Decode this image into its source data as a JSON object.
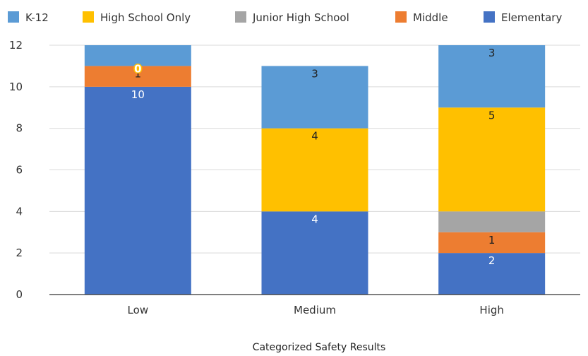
{
  "chart_data": {
    "type": "bar",
    "stacked": true,
    "categories": [
      "Low",
      "Medium",
      "High"
    ],
    "series": [
      {
        "name": "Elementary",
        "color": "#4472C4",
        "label_color": "#ffffff",
        "values": [
          10,
          4,
          2
        ],
        "labels": [
          "10",
          "4",
          "2"
        ]
      },
      {
        "name": "Middle",
        "color": "#ED7D31",
        "label_color": "#222222",
        "values": [
          1,
          0,
          1
        ],
        "labels": [
          "1",
          "",
          "1"
        ]
      },
      {
        "name": "Junior High School",
        "color": "#A5A5A5",
        "label_color": "#222222",
        "values": [
          0,
          0,
          1
        ],
        "labels": [
          "",
          "",
          ""
        ]
      },
      {
        "name": "High School Only",
        "color": "#FFC000",
        "label_color": "#222222",
        "values": [
          0,
          4,
          5
        ],
        "labels": [
          "0",
          "4",
          "5"
        ]
      },
      {
        "name": "K-12",
        "color": "#5B9BD5",
        "label_color": "#222222",
        "values": [
          1,
          3,
          3
        ],
        "labels": [
          "",
          "3",
          "3"
        ]
      }
    ],
    "legend_order": [
      "K-12",
      "High School Only",
      "Junior High School",
      "Middle",
      "Elementary"
    ],
    "legend_position": "top",
    "ylim": [
      0,
      12
    ],
    "yticks": [
      0,
      2,
      4,
      6,
      8,
      10,
      12
    ],
    "grid": true,
    "xlabel": "Categorized Safety Results",
    "ylabel": "",
    "title": ""
  }
}
